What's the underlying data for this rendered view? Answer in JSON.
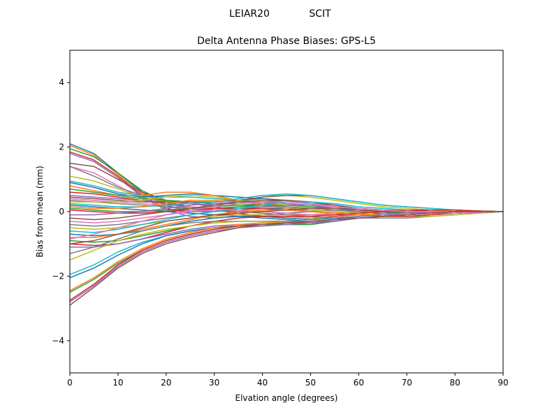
{
  "chart_data": {
    "type": "line",
    "suptitle_left": "LEIAR20",
    "suptitle_right": "SCIT",
    "title": "Delta Antenna Phase Biases: GPS-L5",
    "xlabel": "Elvation angle (degrees)",
    "ylabel": "Bias from mean (mm)",
    "xlim": [
      0,
      90
    ],
    "ylim": [
      -5,
      5
    ],
    "xticks": [
      0,
      10,
      20,
      30,
      40,
      50,
      60,
      70,
      80,
      90
    ],
    "xtick_labels": [
      "0",
      "10",
      "20",
      "30",
      "40",
      "50",
      "60",
      "70",
      "80",
      "90"
    ],
    "yticks": [
      -4,
      -2,
      0,
      2,
      4
    ],
    "ytick_labels": [
      "−4",
      "−2",
      "0",
      "2",
      "4"
    ],
    "grid": false,
    "legend": "none",
    "x": [
      0,
      5,
      10,
      15,
      20,
      25,
      30,
      35,
      40,
      45,
      50,
      55,
      60,
      65,
      70,
      75,
      80,
      85,
      90
    ],
    "colors": [
      "#1f77b4",
      "#ff7f0e",
      "#2ca02c",
      "#d62728",
      "#9467bd",
      "#8c564b",
      "#e377c2",
      "#7f7f7f",
      "#bcbd22",
      "#17becf"
    ],
    "series": [
      {
        "values": [
          2.1,
          1.8,
          1.2,
          0.6,
          0.2,
          0.0,
          0.0,
          0.05,
          0.1,
          0.1,
          0.05,
          0.0,
          -0.05,
          -0.1,
          -0.1,
          -0.05,
          0.0,
          0.0,
          0.0
        ]
      },
      {
        "values": [
          2.05,
          1.75,
          1.15,
          0.55,
          0.25,
          0.1,
          0.05,
          0.0,
          -0.05,
          -0.1,
          -0.1,
          -0.05,
          0.0,
          0.05,
          0.05,
          0.05,
          0.0,
          0.0,
          0.0
        ]
      },
      {
        "values": [
          1.95,
          1.7,
          1.2,
          0.65,
          0.3,
          0.15,
          0.1,
          0.15,
          0.2,
          0.15,
          0.1,
          0.05,
          0.0,
          -0.05,
          -0.05,
          0.0,
          0.0,
          0.0,
          0.0
        ]
      },
      {
        "values": [
          1.85,
          1.6,
          1.1,
          0.5,
          0.1,
          -0.05,
          -0.1,
          -0.1,
          -0.1,
          -0.15,
          -0.2,
          -0.15,
          -0.1,
          -0.05,
          0.0,
          0.05,
          0.05,
          0.02,
          0.0
        ]
      },
      {
        "values": [
          1.8,
          1.55,
          1.05,
          0.45,
          0.05,
          -0.15,
          -0.2,
          -0.15,
          -0.1,
          -0.05,
          0.0,
          0.05,
          0.05,
          0.05,
          0.0,
          0.0,
          0.0,
          0.0,
          0.0
        ]
      },
      {
        "values": [
          1.5,
          1.4,
          1.0,
          0.6,
          0.35,
          0.3,
          0.3,
          0.35,
          0.4,
          0.35,
          0.25,
          0.15,
          0.05,
          0.0,
          -0.05,
          -0.05,
          -0.05,
          -0.02,
          0.0
        ]
      },
      {
        "values": [
          1.4,
          1.2,
          0.8,
          0.4,
          0.15,
          0.05,
          0.05,
          0.1,
          0.15,
          0.15,
          0.1,
          0.05,
          0.0,
          -0.05,
          -0.05,
          -0.05,
          0.0,
          0.0,
          0.0
        ]
      },
      {
        "values": [
          1.4,
          1.1,
          0.75,
          0.5,
          0.35,
          0.25,
          0.2,
          0.2,
          0.25,
          0.3,
          0.25,
          0.2,
          0.1,
          0.05,
          0.0,
          0.0,
          0.0,
          0.0,
          0.0
        ]
      },
      {
        "values": [
          1.1,
          0.95,
          0.7,
          0.45,
          0.3,
          0.25,
          0.3,
          0.4,
          0.5,
          0.5,
          0.45,
          0.35,
          0.25,
          0.15,
          0.1,
          0.05,
          0.0,
          0.0,
          0.0
        ]
      },
      {
        "values": [
          0.95,
          0.8,
          0.6,
          0.5,
          0.45,
          0.45,
          0.4,
          0.35,
          0.3,
          0.25,
          0.2,
          0.15,
          0.1,
          0.05,
          0.0,
          0.0,
          0.0,
          0.0,
          0.0
        ]
      },
      {
        "values": [
          0.9,
          0.75,
          0.55,
          0.45,
          0.5,
          0.55,
          0.5,
          0.45,
          0.4,
          0.35,
          0.25,
          0.15,
          0.05,
          0.0,
          -0.05,
          -0.05,
          -0.05,
          -0.02,
          0.0
        ]
      },
      {
        "values": [
          0.8,
          0.65,
          0.5,
          0.5,
          0.6,
          0.6,
          0.5,
          0.35,
          0.2,
          0.1,
          0.0,
          -0.05,
          -0.1,
          -0.15,
          -0.15,
          -0.1,
          -0.05,
          -0.02,
          0.0
        ]
      },
      {
        "values": [
          0.7,
          0.6,
          0.5,
          0.4,
          0.35,
          0.3,
          0.25,
          0.25,
          0.3,
          0.35,
          0.3,
          0.2,
          0.1,
          0.05,
          0.05,
          0.05,
          0.05,
          0.02,
          0.0
        ]
      },
      {
        "values": [
          0.6,
          0.55,
          0.45,
          0.35,
          0.25,
          0.15,
          0.05,
          -0.05,
          -0.15,
          -0.2,
          -0.25,
          -0.2,
          -0.15,
          -0.1,
          -0.05,
          0.0,
          0.0,
          0.0,
          0.0
        ]
      },
      {
        "values": [
          0.5,
          0.45,
          0.4,
          0.35,
          0.3,
          0.25,
          0.15,
          0.05,
          0.0,
          -0.05,
          -0.1,
          -0.1,
          -0.1,
          -0.15,
          -0.15,
          -0.1,
          -0.05,
          -0.02,
          0.0
        ]
      },
      {
        "values": [
          0.45,
          0.4,
          0.35,
          0.3,
          0.3,
          0.3,
          0.3,
          0.35,
          0.45,
          0.5,
          0.5,
          0.4,
          0.3,
          0.2,
          0.15,
          0.1,
          0.05,
          0.02,
          0.0
        ]
      },
      {
        "values": [
          0.4,
          0.35,
          0.3,
          0.25,
          0.2,
          0.15,
          0.1,
          0.1,
          0.15,
          0.2,
          0.2,
          0.15,
          0.1,
          0.05,
          0.0,
          -0.05,
          -0.05,
          -0.02,
          0.0
        ]
      },
      {
        "values": [
          0.35,
          0.3,
          0.25,
          0.2,
          0.15,
          0.1,
          0.05,
          0.0,
          -0.05,
          -0.1,
          -0.15,
          -0.2,
          -0.2,
          -0.2,
          -0.2,
          -0.15,
          -0.1,
          -0.05,
          0.0
        ]
      },
      {
        "values": [
          0.3,
          0.3,
          0.3,
          0.35,
          0.45,
          0.5,
          0.45,
          0.35,
          0.25,
          0.15,
          0.05,
          0.0,
          -0.05,
          -0.1,
          -0.15,
          -0.15,
          -0.1,
          -0.05,
          0.0
        ]
      },
      {
        "values": [
          0.25,
          0.2,
          0.15,
          0.15,
          0.2,
          0.25,
          0.3,
          0.4,
          0.5,
          0.55,
          0.5,
          0.4,
          0.3,
          0.2,
          0.15,
          0.1,
          0.05,
          0.02,
          0.0
        ]
      },
      {
        "values": [
          0.2,
          0.15,
          0.1,
          0.05,
          0.0,
          -0.05,
          -0.1,
          -0.15,
          -0.2,
          -0.25,
          -0.3,
          -0.25,
          -0.2,
          -0.15,
          -0.1,
          -0.05,
          0.0,
          0.0,
          0.0
        ]
      },
      {
        "values": [
          0.15,
          0.1,
          0.1,
          0.15,
          0.25,
          0.35,
          0.35,
          0.3,
          0.25,
          0.2,
          0.15,
          0.1,
          0.05,
          0.05,
          0.05,
          0.05,
          0.05,
          0.02,
          0.0
        ]
      },
      {
        "values": [
          0.1,
          0.05,
          0.0,
          0.0,
          0.05,
          0.1,
          0.15,
          0.2,
          0.2,
          0.2,
          0.15,
          0.1,
          0.05,
          0.0,
          -0.05,
          -0.05,
          -0.05,
          -0.02,
          0.0
        ]
      },
      {
        "values": [
          0.05,
          0.0,
          -0.05,
          -0.05,
          0.0,
          0.05,
          0.1,
          0.1,
          0.1,
          0.05,
          0.0,
          -0.05,
          -0.1,
          -0.15,
          -0.15,
          -0.1,
          -0.05,
          -0.02,
          0.0
        ]
      },
      {
        "values": [
          -0.1,
          -0.1,
          -0.05,
          0.0,
          0.1,
          0.2,
          0.25,
          0.3,
          0.3,
          0.25,
          0.2,
          0.1,
          0.05,
          0.0,
          0.0,
          0.0,
          0.0,
          0.0,
          0.0
        ]
      },
      {
        "values": [
          -0.2,
          -0.25,
          -0.2,
          -0.1,
          0.0,
          0.1,
          0.2,
          0.3,
          0.35,
          0.35,
          0.3,
          0.2,
          0.1,
          0.05,
          0.0,
          -0.05,
          -0.05,
          -0.02,
          0.0
        ]
      },
      {
        "values": [
          -0.3,
          -0.35,
          -0.3,
          -0.2,
          -0.1,
          0.0,
          0.05,
          0.05,
          0.0,
          -0.05,
          -0.1,
          -0.1,
          -0.1,
          -0.1,
          -0.1,
          -0.05,
          -0.05,
          -0.02,
          0.0
        ]
      },
      {
        "values": [
          -0.4,
          -0.45,
          -0.4,
          -0.3,
          -0.2,
          -0.1,
          0.0,
          0.1,
          0.15,
          0.15,
          0.1,
          0.05,
          0.0,
          -0.05,
          -0.05,
          -0.05,
          0.0,
          0.0,
          0.0
        ]
      },
      {
        "values": [
          -0.5,
          -0.55,
          -0.5,
          -0.4,
          -0.3,
          -0.2,
          -0.15,
          -0.1,
          -0.1,
          -0.15,
          -0.2,
          -0.2,
          -0.15,
          -0.1,
          -0.05,
          0.0,
          0.0,
          0.0,
          0.0
        ]
      },
      {
        "values": [
          -0.6,
          -0.65,
          -0.55,
          -0.4,
          -0.25,
          -0.1,
          0.0,
          0.1,
          0.2,
          0.3,
          0.3,
          0.25,
          0.15,
          0.1,
          0.05,
          0.05,
          0.05,
          0.02,
          0.0
        ]
      },
      {
        "values": [
          -0.7,
          -0.75,
          -0.7,
          -0.6,
          -0.45,
          -0.3,
          -0.2,
          -0.15,
          -0.15,
          -0.2,
          -0.25,
          -0.2,
          -0.15,
          -0.1,
          -0.05,
          0.0,
          0.0,
          0.0,
          0.0
        ]
      },
      {
        "values": [
          -0.8,
          -0.8,
          -0.7,
          -0.55,
          -0.4,
          -0.25,
          -0.1,
          0.0,
          0.05,
          0.05,
          0.0,
          -0.05,
          -0.1,
          -0.1,
          -0.05,
          0.0,
          0.0,
          0.0,
          0.0
        ]
      },
      {
        "values": [
          -0.9,
          -0.95,
          -0.9,
          -0.75,
          -0.6,
          -0.45,
          -0.35,
          -0.3,
          -0.3,
          -0.3,
          -0.3,
          -0.25,
          -0.2,
          -0.15,
          -0.1,
          -0.05,
          0.0,
          0.0,
          0.0
        ]
      },
      {
        "values": [
          -1.0,
          -1.05,
          -1.0,
          -0.85,
          -0.65,
          -0.45,
          -0.3,
          -0.2,
          -0.15,
          -0.15,
          -0.15,
          -0.1,
          -0.05,
          0.0,
          0.05,
          0.05,
          0.05,
          0.02,
          0.0
        ]
      },
      {
        "values": [
          -1.1,
          -1.1,
          -1.0,
          -0.85,
          -0.7,
          -0.55,
          -0.45,
          -0.4,
          -0.4,
          -0.4,
          -0.35,
          -0.25,
          -0.15,
          -0.1,
          -0.05,
          0.0,
          0.0,
          0.0,
          0.0
        ]
      },
      {
        "values": [
          -1.0,
          -0.9,
          -0.7,
          -0.5,
          -0.3,
          -0.2,
          -0.1,
          -0.05,
          0.0,
          0.05,
          0.1,
          0.1,
          0.05,
          0.0,
          0.0,
          0.0,
          0.0,
          0.0,
          0.0
        ]
      },
      {
        "values": [
          -0.85,
          -0.7,
          -0.5,
          -0.3,
          -0.1,
          0.05,
          0.15,
          0.25,
          0.3,
          0.3,
          0.25,
          0.15,
          0.1,
          0.05,
          0.0,
          0.0,
          0.0,
          0.0,
          0.0
        ]
      },
      {
        "values": [
          -1.3,
          -1.1,
          -0.85,
          -0.6,
          -0.45,
          -0.35,
          -0.3,
          -0.3,
          -0.3,
          -0.3,
          -0.3,
          -0.25,
          -0.2,
          -0.15,
          -0.1,
          -0.05,
          0.0,
          0.0,
          0.0
        ]
      },
      {
        "values": [
          -1.5,
          -1.2,
          -0.9,
          -0.7,
          -0.55,
          -0.45,
          -0.35,
          -0.3,
          -0.3,
          -0.35,
          -0.35,
          -0.3,
          -0.2,
          -0.15,
          -0.1,
          -0.05,
          0.0,
          0.0,
          0.0
        ]
      },
      {
        "values": [
          -1.95,
          -1.65,
          -1.25,
          -0.95,
          -0.75,
          -0.6,
          -0.5,
          -0.4,
          -0.35,
          -0.35,
          -0.35,
          -0.3,
          -0.2,
          -0.15,
          -0.1,
          -0.05,
          0.0,
          0.0,
          0.0
        ]
      },
      {
        "values": [
          -2.05,
          -1.75,
          -1.35,
          -1.0,
          -0.75,
          -0.6,
          -0.5,
          -0.45,
          -0.4,
          -0.4,
          -0.4,
          -0.3,
          -0.2,
          -0.15,
          -0.1,
          -0.05,
          0.0,
          0.0,
          0.0
        ]
      },
      {
        "values": [
          -2.45,
          -2.05,
          -1.55,
          -1.15,
          -0.85,
          -0.65,
          -0.5,
          -0.4,
          -0.35,
          -0.35,
          -0.35,
          -0.3,
          -0.2,
          -0.15,
          -0.1,
          -0.05,
          0.0,
          0.0,
          0.0
        ]
      },
      {
        "values": [
          -2.5,
          -2.1,
          -1.6,
          -1.2,
          -0.9,
          -0.7,
          -0.55,
          -0.45,
          -0.4,
          -0.4,
          -0.4,
          -0.3,
          -0.2,
          -0.15,
          -0.1,
          -0.05,
          0.0,
          0.0,
          0.0
        ]
      },
      {
        "values": [
          -2.75,
          -2.25,
          -1.65,
          -1.2,
          -0.9,
          -0.7,
          -0.55,
          -0.45,
          -0.4,
          -0.35,
          -0.35,
          -0.3,
          -0.2,
          -0.15,
          -0.1,
          -0.05,
          0.0,
          0.0,
          0.0
        ]
      },
      {
        "values": [
          -2.8,
          -2.3,
          -1.7,
          -1.25,
          -0.95,
          -0.75,
          -0.6,
          -0.5,
          -0.45,
          -0.4,
          -0.35,
          -0.3,
          -0.2,
          -0.15,
          -0.1,
          -0.05,
          0.0,
          0.0,
          0.0
        ]
      },
      {
        "values": [
          -2.9,
          -2.35,
          -1.75,
          -1.3,
          -1.0,
          -0.8,
          -0.65,
          -0.5,
          -0.4,
          -0.35,
          -0.3,
          -0.25,
          -0.2,
          -0.15,
          -0.1,
          -0.05,
          0.0,
          0.0,
          0.0
        ]
      }
    ]
  }
}
